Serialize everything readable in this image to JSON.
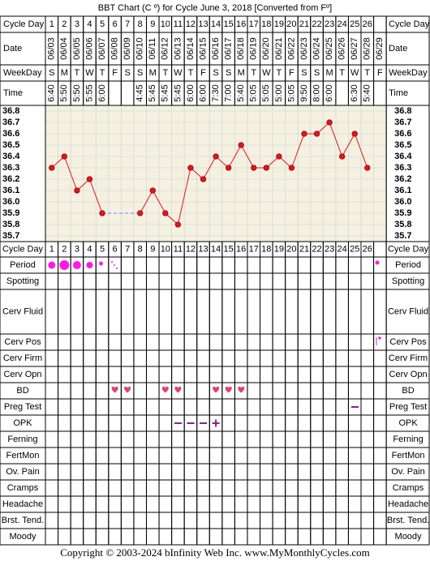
{
  "title": "BBT Chart (C º) for Cycle June 3, 2018  [Converted from Fº]",
  "top_rows": [
    "Cycle Day",
    "Date",
    "WeekDay",
    "Time"
  ],
  "bottom_rows": [
    "Cycle Day",
    "Period",
    "Spotting",
    "Cerv Fluid",
    "Cerv Pos",
    "Cerv Firm",
    "Cerv Opn",
    "BD",
    "Preg Test",
    "OPK",
    "Ferning",
    "FertMon",
    "Ov. Pain",
    "Cramps",
    "Headache",
    "Brst. Tend.",
    "Moody"
  ],
  "dates": [
    "06/03",
    "06/04",
    "06/05",
    "06/06",
    "06/07",
    "06/08",
    "06/09",
    "06/10",
    "06/11",
    "06/12",
    "06/13",
    "06/14",
    "06/15",
    "06/16",
    "06/17",
    "06/18",
    "06/19",
    "06/20",
    "06/21",
    "06/22",
    "06/23",
    "06/24",
    "06/25",
    "06/26",
    "06/27",
    "06/28",
    "06/29"
  ],
  "weekdays": [
    "S",
    "M",
    "T",
    "W",
    "T",
    "F",
    "S",
    "S",
    "M",
    "T",
    "W",
    "T",
    "F",
    "S",
    "S",
    "M",
    "T",
    "W",
    "T",
    "F",
    "S",
    "S",
    "M",
    "T",
    "W",
    "T",
    "F"
  ],
  "times": [
    "6:40",
    "5:50",
    "5:50",
    "5:55",
    "6:00",
    null,
    null,
    "4:45",
    "5:45",
    "5:45",
    "5:45",
    "6:00",
    "6:00",
    "7:30",
    "7:00",
    "5:40",
    "5:05",
    "5:05",
    "5:00",
    "5:05",
    "9:50",
    "8:00",
    "6:00",
    null,
    "6:30",
    "5:40",
    null
  ],
  "chart_data": {
    "type": "line",
    "categories": [
      1,
      2,
      3,
      4,
      5,
      6,
      7,
      8,
      9,
      10,
      11,
      12,
      13,
      14,
      15,
      16,
      17,
      18,
      19,
      20,
      21,
      22,
      23,
      24,
      25,
      26,
      null
    ],
    "values": [
      36.3,
      36.4,
      36.1,
      36.2,
      35.9,
      null,
      null,
      35.9,
      36.1,
      35.9,
      35.8,
      36.3,
      36.2,
      36.4,
      36.3,
      36.5,
      36.3,
      36.3,
      36.4,
      36.3,
      36.6,
      36.6,
      36.7,
      36.4,
      36.6,
      36.3,
      null
    ],
    "color": "#e0151b",
    "ylim": [
      35.65,
      36.85
    ],
    "yticks": [
      36.8,
      36.7,
      36.6,
      36.5,
      36.4,
      36.3,
      36.2,
      36.1,
      {
        "value": 36,
        "label": "36.0"
      },
      35.9,
      35.8,
      35.7
    ],
    "grid": true
  },
  "footer": "Copyright © 2003-2024 bInfinity Web Inc.    www.MyMonthlyCycles.com"
}
